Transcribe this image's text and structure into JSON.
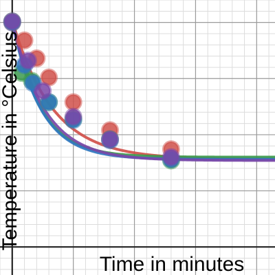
{
  "chart_data": {
    "type": "scatter",
    "title": "",
    "xlabel": "Time in minutes",
    "ylabel": "Temperature in °Celsius",
    "xlim": [
      -1,
      21.5
    ],
    "ylim": [
      -2.5,
      22
    ],
    "grid": true,
    "legend": "none",
    "series": [
      {
        "color": "#d0504a",
        "points": [
          {
            "x": 0.0,
            "y": 20.0
          },
          {
            "x": 1.0,
            "y": 18.4
          },
          {
            "x": 2.0,
            "y": 16.8
          },
          {
            "x": 3.0,
            "y": 15.1
          },
          {
            "x": 5.0,
            "y": 12.9
          },
          {
            "x": 8.0,
            "y": 10.4
          },
          {
            "x": 13.0,
            "y": 8.7
          }
        ],
        "fit": {
          "model": "exponential",
          "asymptote": 7.8,
          "amplitude": 12.4,
          "rate": 0.305
        }
      },
      {
        "color": "#3b9a4c",
        "points": [
          {
            "x": 0.0,
            "y": 20.1
          },
          {
            "x": 0.8,
            "y": 15.5
          },
          {
            "x": 1.6,
            "y": 14.8
          },
          {
            "x": 3.0,
            "y": 12.9
          },
          {
            "x": 5.0,
            "y": 11.4
          },
          {
            "x": 8.0,
            "y": 9.6
          },
          {
            "x": 13.0,
            "y": 7.7
          }
        ],
        "fit": {
          "model": "exponential",
          "asymptote": 8.0,
          "amplitude": 12.3,
          "rate": 0.44
        }
      },
      {
        "color": "#2f76c0",
        "points": [
          {
            "x": 0.0,
            "y": 20.0
          },
          {
            "x": 1.0,
            "y": 16.2
          },
          {
            "x": 1.7,
            "y": 14.6
          },
          {
            "x": 3.0,
            "y": 12.9
          },
          {
            "x": 5.0,
            "y": 11.3
          },
          {
            "x": 8.0,
            "y": 9.5
          },
          {
            "x": 13.0,
            "y": 7.8
          }
        ],
        "fit": {
          "model": "exponential",
          "asymptote": 7.8,
          "amplitude": 12.3,
          "rate": 0.43
        }
      },
      {
        "color": "#7a46a8",
        "points": [
          {
            "x": 0.0,
            "y": 20.1
          },
          {
            "x": 1.3,
            "y": 16.6
          },
          {
            "x": 2.5,
            "y": 13.9
          },
          {
            "x": 5.0,
            "y": 11.6
          },
          {
            "x": 8.0,
            "y": 9.6
          },
          {
            "x": 13.0,
            "y": 8.0
          }
        ],
        "fit": {
          "model": "exponential",
          "asymptote": 7.7,
          "amplitude": 12.4,
          "rate": 0.38
        }
      }
    ]
  }
}
